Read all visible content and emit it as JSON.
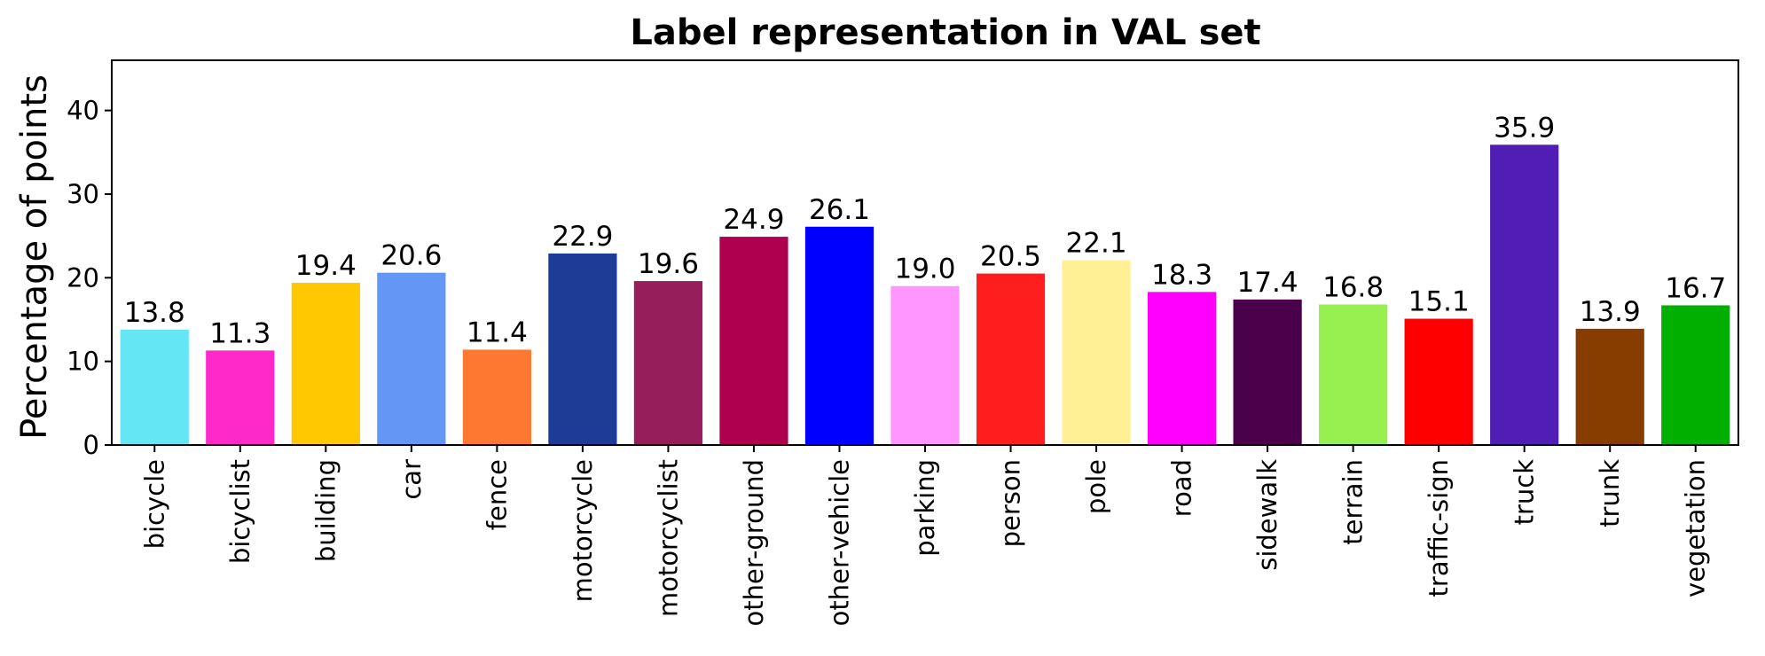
{
  "chart_data": {
    "type": "bar",
    "title": "Label representation in VAL set",
    "xlabel": "",
    "ylabel": "Percentage of points",
    "ylim": [
      0,
      46
    ],
    "yticks": [
      0,
      10,
      20,
      30,
      40
    ],
    "grid": false,
    "categories": [
      "bicycle",
      "bicyclist",
      "building",
      "car",
      "fence",
      "motorcycle",
      "motorcyclist",
      "other-ground",
      "other-vehicle",
      "parking",
      "person",
      "pole",
      "road",
      "sidewalk",
      "terrain",
      "traffic-sign",
      "truck",
      "trunk",
      "vegetation"
    ],
    "values": [
      13.8,
      11.3,
      19.4,
      20.6,
      11.4,
      22.9,
      19.6,
      24.9,
      26.1,
      19.0,
      20.5,
      22.1,
      18.3,
      17.4,
      16.8,
      15.1,
      35.9,
      13.9,
      16.7
    ],
    "value_labels": [
      "13.8",
      "11.3",
      "19.4",
      "20.6",
      "11.4",
      "22.9",
      "19.6",
      "24.9",
      "26.1",
      "19.0",
      "20.5",
      "22.1",
      "18.3",
      "17.4",
      "16.8",
      "15.1",
      "35.9",
      "13.9",
      "16.7"
    ],
    "colors": [
      "#64e6f5",
      "#ff28c8",
      "#ffc800",
      "#6496f5",
      "#ff7832",
      "#1e3c96",
      "#961e5a",
      "#af0050",
      "#0000ff",
      "#ff96ff",
      "#ff1e1e",
      "#fff096",
      "#ff00ff",
      "#4b004b",
      "#96f050",
      "#ff0000",
      "#501eb4",
      "#873c00",
      "#00af00"
    ]
  }
}
